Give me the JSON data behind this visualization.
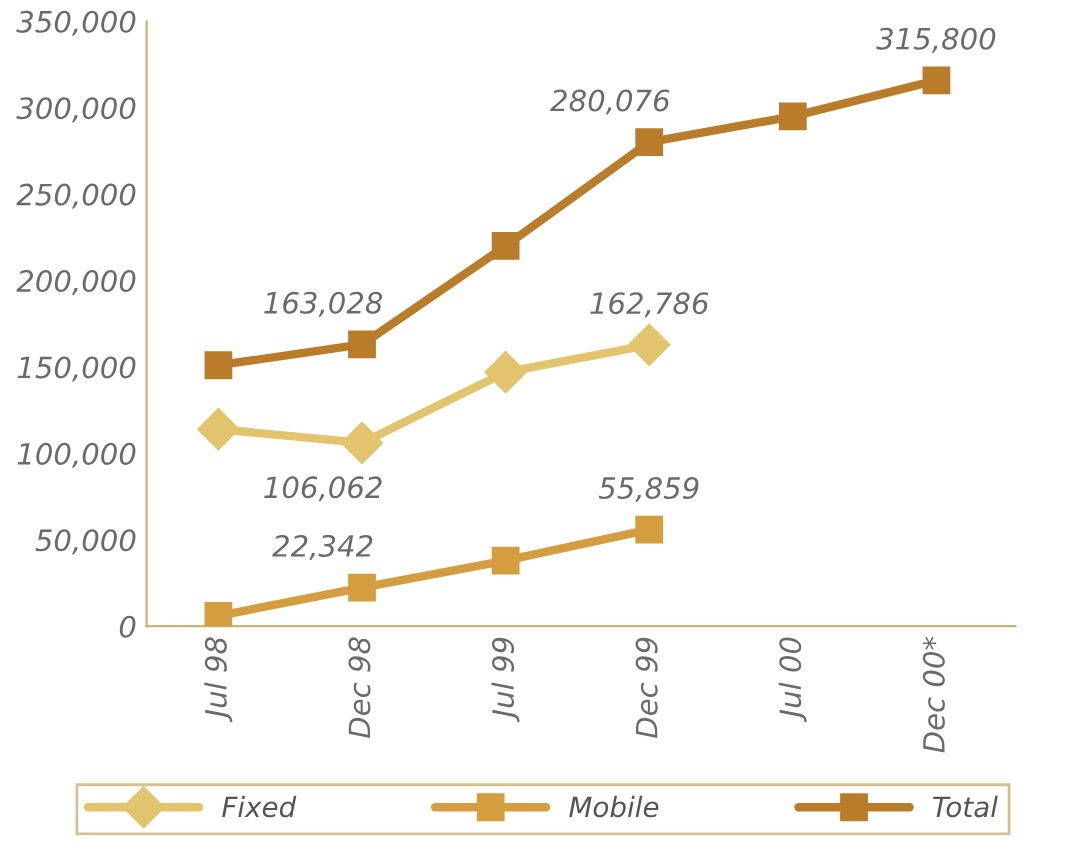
{
  "chart_data": {
    "type": "line",
    "categories": [
      "Jul 98",
      "Dec 98",
      "Jul 99",
      "Dec 99",
      "Jul 00",
      "Dec 00*"
    ],
    "series": [
      {
        "name": "Fixed",
        "color": "#e2c46e",
        "marker": "diamond",
        "values": [
          114000,
          106062,
          147000,
          162786,
          null,
          null
        ],
        "value_labels": [
          null,
          "106,062",
          null,
          "162,786",
          null,
          null
        ]
      },
      {
        "name": "Mobile",
        "color": "#d49e40",
        "marker": "square",
        "values": [
          6000,
          22342,
          38000,
          55859,
          null,
          null
        ],
        "value_labels": [
          null,
          "22,342",
          null,
          "55,859",
          null,
          null
        ]
      },
      {
        "name": "Total",
        "color": "#b97c2a",
        "marker": "square",
        "values": [
          151000,
          163028,
          220000,
          280076,
          295000,
          315800
        ],
        "value_labels": [
          null,
          "163,028",
          null,
          "280,076",
          null,
          "315,800"
        ]
      }
    ],
    "ylim": [
      0,
      350000
    ],
    "yticks": [
      {
        "value": 0,
        "label": "0"
      },
      {
        "value": 50000,
        "label": "50,000"
      },
      {
        "value": 100000,
        "label": "100,000"
      },
      {
        "value": 150000,
        "label": "150,000"
      },
      {
        "value": 200000,
        "label": "200,000"
      },
      {
        "value": 250000,
        "label": "250,000"
      },
      {
        "value": 300000,
        "label": "300,000"
      },
      {
        "value": 350000,
        "label": "350,000"
      }
    ],
    "grid": false,
    "legend": "bottom",
    "line_style": "solid"
  }
}
